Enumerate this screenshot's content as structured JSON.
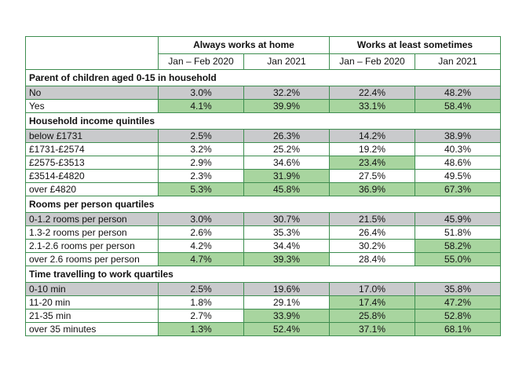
{
  "colors": {
    "grey": "#c9cacc",
    "green": "#a8d59f",
    "border": "#3d8d4f"
  },
  "header": {
    "groups": [
      "Always works at home",
      "Works at least sometimes"
    ],
    "periods": [
      "Jan – Feb 2020",
      "Jan 2021",
      "Jan – Feb 2020",
      "Jan 2021"
    ]
  },
  "sections": [
    {
      "title": "Parent of children aged 0-15 in household",
      "rows": [
        {
          "label": "No",
          "values": [
            "3.0%",
            "32.2%",
            "22.4%",
            "48.2%"
          ],
          "shading": [
            "grey",
            "grey",
            "grey",
            "grey",
            "grey"
          ]
        },
        {
          "label": "Yes",
          "values": [
            "4.1%",
            "39.9%",
            "33.1%",
            "58.4%"
          ],
          "shading": [
            "",
            "green",
            "green",
            "green",
            "green"
          ]
        }
      ]
    },
    {
      "title": "Household income quintiles",
      "rows": [
        {
          "label": "below £1731",
          "values": [
            "2.5%",
            "26.3%",
            "14.2%",
            "38.9%"
          ],
          "shading": [
            "grey",
            "grey",
            "grey",
            "grey",
            "grey"
          ]
        },
        {
          "label": "£1731-£2574",
          "values": [
            "3.2%",
            "25.2%",
            "19.2%",
            "40.3%"
          ],
          "shading": [
            "",
            "",
            "",
            "",
            ""
          ]
        },
        {
          "label": "£2575-£3513",
          "values": [
            "2.9%",
            "34.6%",
            "23.4%",
            "48.6%"
          ],
          "shading": [
            "",
            "",
            "",
            "green",
            ""
          ]
        },
        {
          "label": "£3514-£4820",
          "values": [
            "2.3%",
            "31.9%",
            "27.5%",
            "49.5%"
          ],
          "shading": [
            "",
            "",
            "green",
            "",
            ""
          ]
        },
        {
          "label": "over £4820",
          "values": [
            "5.3%",
            "45.8%",
            "36.9%",
            "67.3%"
          ],
          "shading": [
            "",
            "green",
            "green",
            "green",
            "green"
          ]
        }
      ]
    },
    {
      "title": "Rooms per person quartiles",
      "rows": [
        {
          "label": "0-1.2 rooms per person",
          "values": [
            "3.0%",
            "30.7%",
            "21.5%",
            "45.9%"
          ],
          "shading": [
            "grey",
            "grey",
            "grey",
            "grey",
            "grey"
          ]
        },
        {
          "label": "1.3-2 rooms per person",
          "values": [
            "2.6%",
            "35.3%",
            "26.4%",
            "51.8%"
          ],
          "shading": [
            "",
            "",
            "",
            "",
            ""
          ]
        },
        {
          "label": "2.1-2.6 rooms per person",
          "values": [
            "4.2%",
            "34.4%",
            "30.2%",
            "58.2%"
          ],
          "shading": [
            "",
            "",
            "",
            "",
            "green"
          ]
        },
        {
          "label": "over 2.6 rooms per person",
          "values": [
            "4.7%",
            "39.3%",
            "28.4%",
            "55.0%"
          ],
          "shading": [
            "",
            "green",
            "green",
            "",
            "green"
          ]
        }
      ]
    },
    {
      "title": "Time travelling to work quartiles",
      "rows": [
        {
          "label": "0-10 min",
          "values": [
            "2.5%",
            "19.6%",
            "17.0%",
            "35.8%"
          ],
          "shading": [
            "grey",
            "grey",
            "grey",
            "grey",
            "grey"
          ]
        },
        {
          "label": "11-20 min",
          "values": [
            "1.8%",
            "29.1%",
            "17.4%",
            "47.2%"
          ],
          "shading": [
            "",
            "",
            "",
            "green",
            "green"
          ]
        },
        {
          "label": "21-35 min",
          "values": [
            "2.7%",
            "33.9%",
            "25.8%",
            "52.8%"
          ],
          "shading": [
            "",
            "",
            "green",
            "green",
            "green"
          ]
        },
        {
          "label": "over 35 minutes",
          "values": [
            "1.3%",
            "52.4%",
            "37.1%",
            "68.1%"
          ],
          "shading": [
            "",
            "green",
            "green",
            "green",
            "green"
          ]
        }
      ]
    }
  ]
}
